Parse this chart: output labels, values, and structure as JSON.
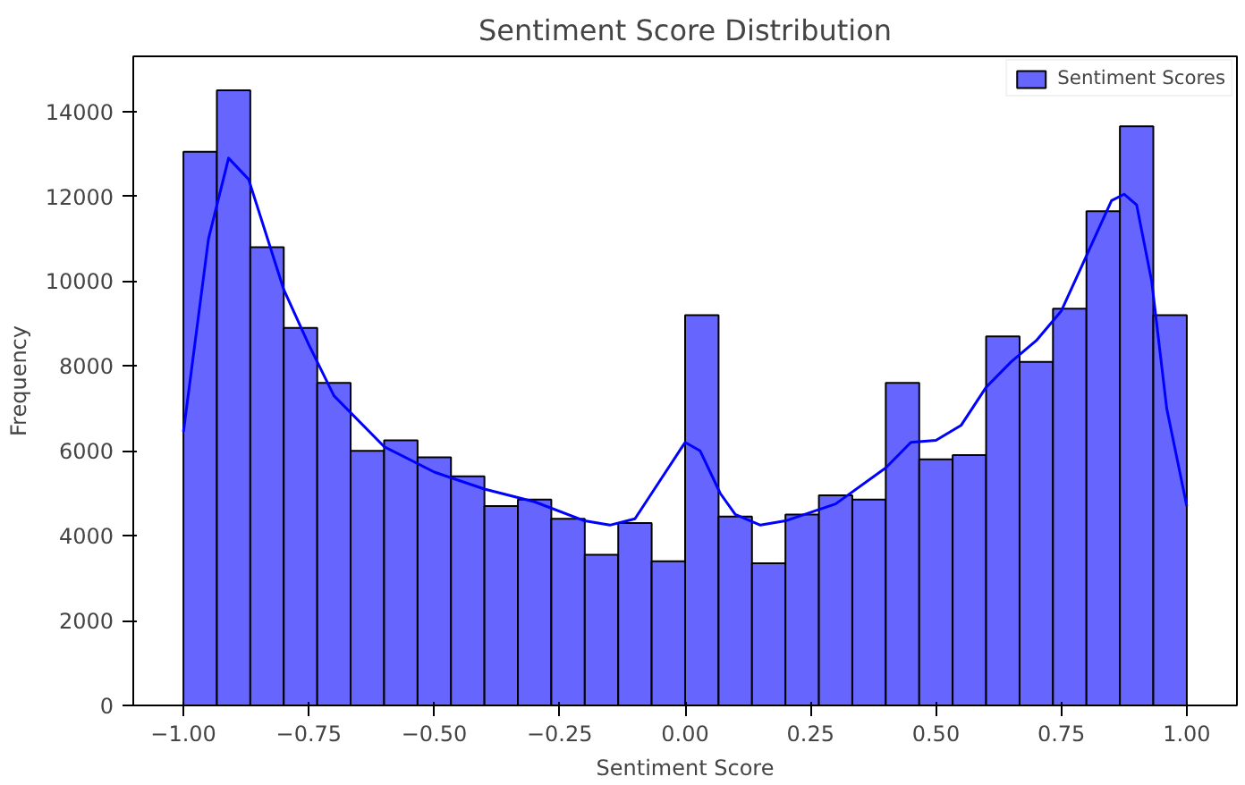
{
  "chart_data": {
    "type": "histogram",
    "title": "Sentiment Score Distribution",
    "xlabel": "Sentiment Score",
    "ylabel": "Frequency",
    "bins": [
      -1.0,
      -0.9333,
      -0.8667,
      -0.8,
      -0.7333,
      -0.6667,
      -0.6,
      -0.5333,
      -0.4667,
      -0.4,
      -0.3333,
      -0.2667,
      -0.2,
      -0.1333,
      -0.0667,
      0.0,
      0.0667,
      0.1333,
      0.2,
      0.2667,
      0.3333,
      0.4,
      0.4667,
      0.5333,
      0.6,
      0.6667,
      0.7333,
      0.8,
      0.8667,
      0.9333,
      1.0
    ],
    "series": [
      {
        "name": "Sentiment Scores",
        "color": "#6666ff",
        "values": [
          13050,
          14500,
          10800,
          8900,
          7600,
          6000,
          6250,
          5850,
          5400,
          4700,
          4850,
          4400,
          3550,
          4300,
          3400,
          9200,
          4450,
          3350,
          4500,
          4950,
          4850,
          7600,
          5800,
          5900,
          8700,
          8100,
          9350,
          11650,
          13650,
          9200
        ]
      },
      {
        "type": "line",
        "color": "#0000ff",
        "x": [
          -1.0,
          -0.95,
          -0.91,
          -0.87,
          -0.8,
          -0.75,
          -0.7,
          -0.6,
          -0.5,
          -0.4,
          -0.3,
          -0.2,
          -0.15,
          -0.1,
          -0.05,
          0.0,
          0.03,
          0.07,
          0.1,
          0.15,
          0.2,
          0.3,
          0.4,
          0.45,
          0.5,
          0.55,
          0.6,
          0.65,
          0.7,
          0.75,
          0.8,
          0.85,
          0.875,
          0.9,
          0.93,
          0.96,
          1.0
        ],
        "values": [
          6450,
          11000,
          12900,
          12400,
          9800,
          8500,
          7300,
          6100,
          5500,
          5100,
          4800,
          4350,
          4250,
          4400,
          5300,
          6200,
          6000,
          5000,
          4500,
          4250,
          4350,
          4750,
          5600,
          6200,
          6250,
          6600,
          7500,
          8100,
          8600,
          9300,
          10600,
          11900,
          12050,
          11800,
          10000,
          7000,
          4700
        ]
      }
    ],
    "xlim": [
      -1.1,
      1.1
    ],
    "ylim": [
      0,
      15300
    ],
    "xticks": [
      {
        "value": -1.0,
        "label": "−1.00"
      },
      {
        "value": -0.75,
        "label": "−0.75"
      },
      {
        "value": -0.5,
        "label": "−0.50"
      },
      {
        "value": -0.25,
        "label": "−0.25"
      },
      {
        "value": 0.0,
        "label": "0.00"
      },
      {
        "value": 0.25,
        "label": "0.25"
      },
      {
        "value": 0.5,
        "label": "0.50"
      },
      {
        "value": 0.75,
        "label": "0.75"
      },
      {
        "value": 1.0,
        "label": "1.00"
      }
    ],
    "yticks": [
      0,
      2000,
      4000,
      6000,
      8000,
      10000,
      12000,
      14000
    ],
    "grid": false,
    "legend": "top right"
  }
}
